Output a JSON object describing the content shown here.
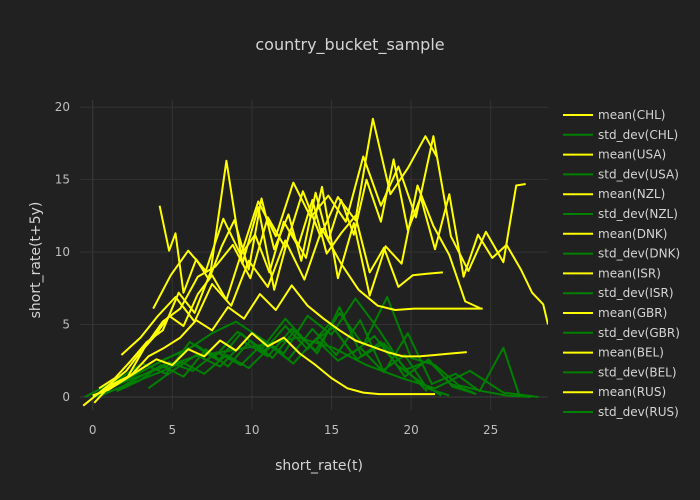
{
  "chart_data": {
    "type": "line",
    "title": "country_bucket_sample",
    "xlabel": "short_rate(t)",
    "ylabel": "short_rate(t+5y)",
    "xlim": [
      -0.8,
      28.6
    ],
    "ylim": [
      -0.9,
      20.5
    ],
    "x_ticks": [
      0,
      5,
      10,
      15,
      20,
      25
    ],
    "y_ticks": [
      0,
      5,
      10,
      15,
      20
    ],
    "grid": true,
    "legend_position": "right",
    "colors": {
      "mean": "#ffff00",
      "std_dev": "#008000",
      "background": "#212121"
    },
    "series": [
      {
        "name": "mean(CHL)",
        "kind": "mean",
        "x": [
          4.2,
          4.8,
          5.2,
          5.7,
          6.5,
          7.3,
          8.1,
          8.9,
          9.8,
          10.6,
          11.4,
          12.3,
          13.1,
          14.0,
          14.8,
          15.6,
          16.4,
          17.2,
          18.1,
          18.9,
          19.8,
          20.6,
          21.5,
          22.4,
          23.3,
          24.2,
          25.1,
          26.0,
          26.9,
          27.6,
          28.3,
          28.6
        ],
        "y": [
          13.2,
          10.1,
          11.3,
          7.2,
          9.5,
          8.1,
          10.4,
          12.2,
          8.8,
          13.7,
          10.2,
          12.6,
          9.4,
          14.1,
          10.8,
          13.6,
          11.2,
          15.0,
          12.1,
          16.4,
          11.5,
          13.8,
          10.2,
          14.0,
          8.3,
          11.2,
          9.6,
          10.5,
          8.8,
          7.2,
          6.4,
          5.0
        ]
      },
      {
        "name": "std_dev(CHL)",
        "kind": "std_dev",
        "x": [
          0.0,
          2.1,
          4.3,
          6.4,
          8.6,
          10.7,
          12.9,
          15.1,
          17.2,
          19.4,
          21.5,
          23.7,
          25.8,
          28.0
        ],
        "y": [
          0.1,
          1.1,
          2.0,
          2.8,
          3.2,
          3.6,
          4.1,
          3.4,
          2.2,
          1.3,
          0.6,
          1.8,
          0.3,
          0.0
        ]
      },
      {
        "name": "mean(USA)",
        "kind": "mean",
        "x": [
          0.1,
          1.1,
          2.2,
          3.3,
          4.4,
          5.5,
          6.6,
          7.7,
          8.8,
          9.9,
          11.0,
          12.1,
          13.2,
          14.3,
          15.4,
          16.5,
          17.6,
          18.7,
          19.8,
          20.9,
          21.6
        ],
        "y": [
          -0.4,
          0.8,
          1.4,
          3.5,
          5.2,
          6.1,
          8.3,
          9.0,
          10.5,
          8.2,
          12.4,
          10.3,
          14.2,
          11.1,
          13.8,
          12.2,
          19.2,
          14.0,
          15.8,
          18.0,
          16.6
        ]
      },
      {
        "name": "std_dev(USA)",
        "kind": "std_dev",
        "x": [
          0.0,
          1.5,
          3.0,
          4.5,
          6.0,
          7.5,
          9.0,
          10.5,
          12.0,
          13.5,
          15.0,
          16.5,
          18.0,
          19.5,
          21.0
        ],
        "y": [
          0.0,
          0.9,
          1.7,
          2.6,
          3.3,
          4.4,
          5.2,
          4.1,
          3.0,
          5.6,
          4.3,
          6.8,
          4.6,
          2.1,
          0.4
        ]
      },
      {
        "name": "mean(NZL)",
        "kind": "mean",
        "x": [
          0.4,
          1.4,
          2.4,
          3.4,
          4.4,
          5.4,
          6.4,
          7.4,
          8.4,
          9.4,
          10.4,
          11.4,
          12.4,
          13.4,
          14.4,
          15.4,
          16.4,
          17.4,
          18.4,
          19.4,
          20.4,
          21.4,
          22.4,
          23.4,
          24.4
        ],
        "y": [
          0.6,
          1.3,
          2.5,
          3.8,
          4.6,
          7.2,
          5.8,
          8.6,
          16.3,
          9.2,
          13.1,
          7.4,
          11.5,
          9.6,
          14.5,
          8.2,
          12.0,
          7.0,
          10.4,
          9.2,
          14.6,
          11.8,
          9.8,
          6.6,
          6.1
        ]
      },
      {
        "name": "std_dev(NZL)",
        "kind": "std_dev",
        "x": [
          0.2,
          1.6,
          3.1,
          4.6,
          6.1,
          7.6,
          9.1,
          10.6,
          12.1,
          13.6,
          15.1,
          16.6,
          18.1,
          19.6,
          21.1,
          22.6,
          24.1
        ],
        "y": [
          0.1,
          1.2,
          2.3,
          1.6,
          3.8,
          2.7,
          4.5,
          3.3,
          5.4,
          3.6,
          4.8,
          2.6,
          3.8,
          1.4,
          2.6,
          0.7,
          0.2
        ]
      },
      {
        "name": "mean(DNK)",
        "kind": "mean",
        "x": [
          -0.6,
          0.3,
          1.2,
          2.1,
          3.0,
          3.9,
          4.8,
          5.7,
          6.6,
          7.5,
          8.4,
          9.3,
          10.2,
          11.1,
          12.0,
          12.9,
          13.8,
          14.7,
          15.6,
          16.5,
          17.4,
          18.3,
          19.2,
          20.1,
          21.0,
          22.0
        ],
        "y": [
          -0.6,
          0.2,
          1.0,
          1.8,
          3.1,
          4.2,
          5.6,
          4.9,
          7.1,
          8.4,
          6.7,
          9.8,
          11.2,
          8.6,
          12.1,
          10.4,
          13.6,
          9.9,
          11.3,
          12.5,
          8.6,
          10.3,
          7.6,
          8.4,
          8.5,
          8.6
        ]
      },
      {
        "name": "std_dev(DNK)",
        "kind": "std_dev",
        "x": [
          -0.5,
          0.9,
          2.3,
          3.7,
          5.1,
          6.5,
          7.9,
          9.3,
          10.7,
          12.1,
          13.5,
          14.9,
          16.3,
          17.7,
          19.1,
          20.5,
          21.9
        ],
        "y": [
          0.0,
          0.8,
          1.4,
          2.1,
          2.9,
          3.6,
          2.5,
          4.4,
          3.1,
          4.9,
          3.3,
          5.1,
          3.0,
          4.2,
          2.2,
          1.1,
          0.1
        ]
      },
      {
        "name": "mean(ISR)",
        "kind": "mean",
        "x": [
          1.8,
          3.0,
          4.1,
          5.2,
          6.4,
          7.5,
          8.7,
          9.8,
          11.0,
          12.1,
          13.3,
          14.4,
          15.6,
          16.7,
          17.9,
          19.0,
          20.2,
          21.3,
          22.5,
          23.6,
          24.5
        ],
        "y": [
          2.9,
          4.1,
          5.6,
          6.9,
          5.2,
          7.8,
          6.3,
          9.4,
          7.6,
          10.8,
          8.1,
          11.6,
          9.2,
          7.4,
          6.3,
          6.0,
          6.1,
          6.1,
          6.1,
          6.1,
          6.1
        ]
      },
      {
        "name": "std_dev(ISR)",
        "kind": "std_dev",
        "x": [
          1.5,
          2.9,
          4.3,
          5.7,
          7.1,
          8.5,
          9.9,
          11.3,
          12.7,
          14.1,
          15.5,
          16.9,
          18.3,
          19.7,
          21.1,
          22.5,
          23.9
        ],
        "y": [
          0.4,
          1.1,
          2.2,
          1.4,
          3.3,
          2.1,
          3.9,
          2.7,
          4.6,
          3.0,
          6.2,
          2.8,
          3.7,
          1.9,
          2.5,
          0.9,
          0.3
        ]
      },
      {
        "name": "mean(GBR)",
        "kind": "mean",
        "x": [
          0.5,
          1.5,
          2.5,
          3.5,
          4.5,
          5.5,
          6.5,
          7.5,
          8.5,
          9.5,
          10.5,
          11.5,
          12.5,
          13.5,
          14.5,
          15.5,
          16.5,
          17.5,
          18.5,
          19.5,
          20.5,
          21.5,
          22.5,
          23.5
        ],
        "y": [
          0.3,
          0.9,
          1.6,
          2.8,
          3.4,
          4.1,
          5.3,
          4.6,
          6.2,
          5.4,
          7.1,
          6.0,
          7.7,
          6.3,
          5.4,
          4.6,
          3.9,
          3.5,
          3.1,
          2.8,
          2.8,
          2.9,
          3.0,
          3.1
        ]
      },
      {
        "name": "std_dev(GBR)",
        "kind": "std_dev",
        "x": [
          0.3,
          1.8,
          3.3,
          4.8,
          6.3,
          7.8,
          9.3,
          10.8,
          12.3,
          13.8,
          15.3,
          16.8,
          18.3,
          19.8,
          21.3,
          22.8,
          24.3,
          25.8,
          26.8
        ],
        "y": [
          0.0,
          0.7,
          1.6,
          2.4,
          1.8,
          3.1,
          2.2,
          3.8,
          2.6,
          4.7,
          2.9,
          5.3,
          1.7,
          4.4,
          0.9,
          1.6,
          0.4,
          3.4,
          0.1
        ]
      },
      {
        "name": "mean(BEL)",
        "kind": "mean",
        "x": [
          0.0,
          1.0,
          2.0,
          3.0,
          4.0,
          5.0,
          6.0,
          7.0,
          8.0,
          9.0,
          10.0,
          11.0,
          12.0,
          13.0,
          14.0,
          15.0,
          16.0,
          17.0,
          18.0,
          19.0,
          20.0,
          21.0,
          21.5
        ],
        "y": [
          0.1,
          0.5,
          1.2,
          1.9,
          2.6,
          2.2,
          3.3,
          2.8,
          3.9,
          3.2,
          4.4,
          3.5,
          4.1,
          3.0,
          2.2,
          1.3,
          0.6,
          0.3,
          0.2,
          0.2,
          0.2,
          0.2,
          0.2
        ]
      },
      {
        "name": "std_dev(BEL)",
        "kind": "std_dev",
        "x": [
          0.0,
          1.4,
          2.8,
          4.2,
          5.6,
          7.0,
          8.4,
          9.8,
          11.2,
          12.6,
          14.0,
          15.4,
          16.8,
          18.2,
          19.6,
          21.0,
          22.4
        ],
        "y": [
          0.0,
          0.5,
          1.1,
          1.7,
          2.4,
          1.6,
          2.9,
          2.0,
          3.5,
          2.3,
          4.0,
          2.5,
          3.4,
          1.8,
          2.9,
          0.6,
          0.1
        ]
      },
      {
        "name": "mean(RUS)",
        "kind": "mean",
        "x": [
          3.8,
          4.9,
          6.0,
          7.1,
          8.2,
          9.3,
          10.4,
          11.5,
          12.6,
          13.7,
          14.8,
          15.9,
          17.0,
          18.1,
          19.2,
          20.3,
          21.4,
          22.5,
          23.6,
          24.7,
          25.8,
          26.6,
          27.2
        ],
        "y": [
          6.1,
          8.4,
          10.1,
          8.7,
          12.3,
          9.8,
          13.5,
          11.1,
          14.8,
          12.4,
          13.9,
          12.1,
          16.6,
          13.2,
          15.9,
          12.4,
          18.0,
          11.1,
          8.7,
          11.4,
          9.3,
          14.6,
          14.7
        ]
      },
      {
        "name": "std_dev(RUS)",
        "kind": "std_dev",
        "x": [
          3.5,
          5.0,
          6.5,
          8.0,
          9.5,
          11.0,
          12.5,
          14.0,
          15.5,
          17.0,
          18.5,
          20.0,
          21.5,
          23.0,
          24.5,
          26.0,
          27.5
        ],
        "y": [
          0.6,
          1.8,
          2.9,
          2.1,
          3.8,
          2.8,
          4.7,
          3.2,
          5.8,
          3.6,
          6.9,
          2.7,
          2.2,
          0.8,
          0.4,
          0.1,
          0.0
        ]
      }
    ]
  }
}
